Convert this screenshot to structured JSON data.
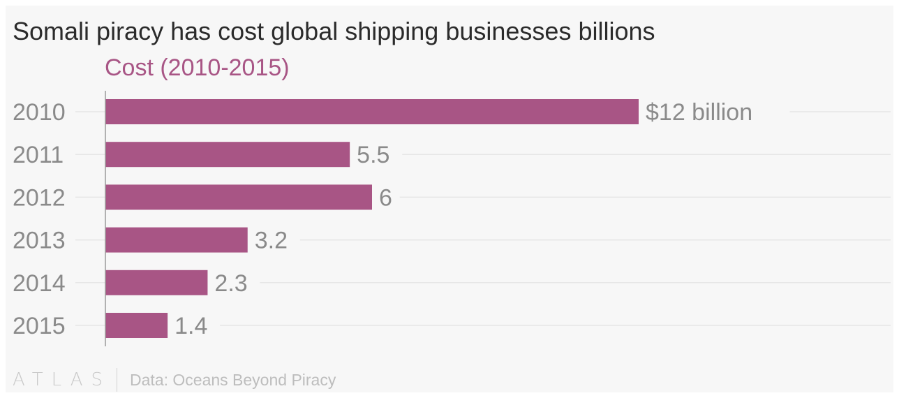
{
  "title": "Somali piracy has cost global shipping businesses billions",
  "subtitle": "Cost (2010-2015)",
  "footer": {
    "logo": "ATLAS",
    "source": "Data: Oceans Beyond Piracy"
  },
  "colors": {
    "bar": "#a85585",
    "subtitle": "#a85585",
    "grid": "#e6e6e6",
    "tick": "#8a8a8a",
    "value_label": "#8a8a8a"
  },
  "chart_data": {
    "type": "bar",
    "orientation": "horizontal",
    "categories": [
      "2010",
      "2011",
      "2012",
      "2013",
      "2014",
      "2015"
    ],
    "values": [
      12,
      5.5,
      6,
      3.2,
      2.3,
      1.4
    ],
    "value_labels": [
      "$12 billion",
      "5.5",
      "6",
      "3.2",
      "2.3",
      "1.4"
    ],
    "xlim": [
      0,
      17.5
    ],
    "grid": true,
    "xlabel": "",
    "ylabel": ""
  }
}
